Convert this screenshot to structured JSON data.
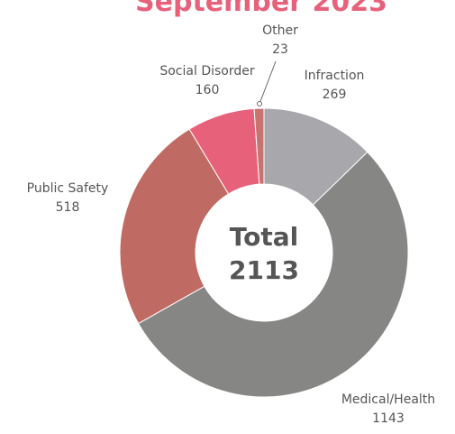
{
  "chart_data": {
    "type": "donut",
    "title": "September 2023",
    "categories": [
      "Infraction",
      "Medical/Health",
      "Public Safety",
      "Social Disorder",
      "Other"
    ],
    "values": [
      269,
      1143,
      518,
      160,
      23
    ],
    "colors": [
      "#a8a7ab",
      "#868684",
      "#c06a64",
      "#e8617b",
      "#c8736f"
    ],
    "center_label": "Total",
    "total": 2113
  }
}
